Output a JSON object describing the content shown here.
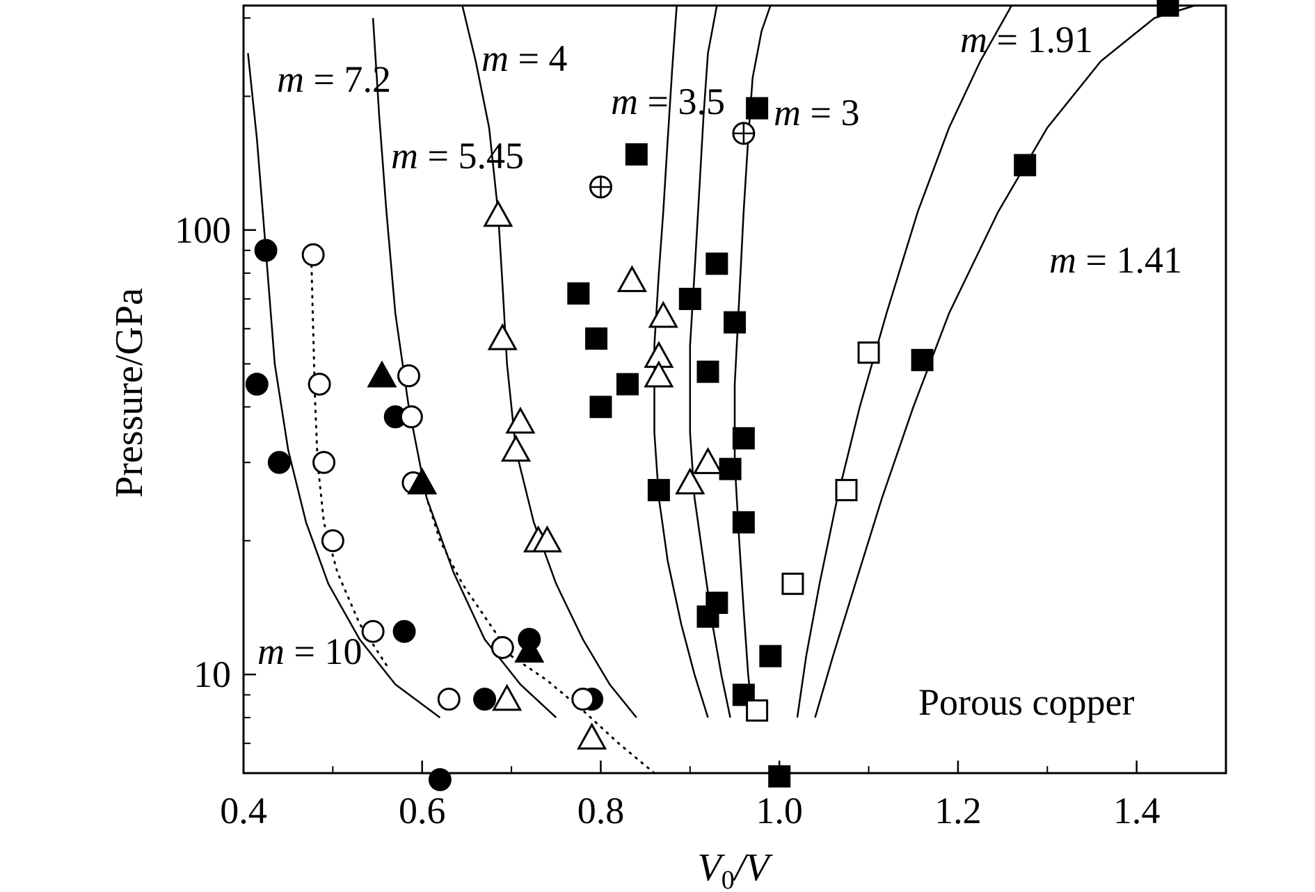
{
  "chart_data": {
    "type": "scatter",
    "title": "",
    "xlabel": "V0/V",
    "ylabel": "Pressure/GPa",
    "xlim": [
      0.4,
      1.5
    ],
    "ylim": [
      6,
      320
    ],
    "yscale": "log",
    "xticks": [
      {
        "value": 0.4,
        "label": "0.4"
      },
      {
        "value": 0.6,
        "label": "0.6"
      },
      {
        "value": 0.8,
        "label": "0.8"
      },
      {
        "value": 1.0,
        "label": "1.0"
      },
      {
        "value": 1.2,
        "label": "1.2"
      },
      {
        "value": 1.4,
        "label": "1.4"
      }
    ],
    "yticks": [
      {
        "value": 10,
        "label": "10"
      },
      {
        "value": 100,
        "label": "100"
      }
    ],
    "annotation": "Porous copper",
    "curves": [
      {
        "name": "m = 10",
        "prefix": "m",
        "value": "= 10",
        "style": "solid",
        "points": [
          [
            0.62,
            8
          ],
          [
            0.57,
            9.5
          ],
          [
            0.53,
            12
          ],
          [
            0.495,
            16
          ],
          [
            0.47,
            22
          ],
          [
            0.45,
            32
          ],
          [
            0.435,
            50
          ],
          [
            0.425,
            90
          ],
          [
            0.415,
            160
          ],
          [
            0.405,
            250
          ]
        ]
      },
      {
        "name": "m = 10 (dotted)",
        "style": "dotted",
        "points": [
          [
            0.56,
            10.5
          ],
          [
            0.53,
            13
          ],
          [
            0.505,
            17
          ],
          [
            0.49,
            22
          ],
          [
            0.483,
            30
          ],
          [
            0.48,
            42
          ],
          [
            0.478,
            60
          ],
          [
            0.476,
            85
          ]
        ]
      },
      {
        "name": "m = 7.2",
        "prefix": "m",
        "value": "= 7.2",
        "style": "solid",
        "points": [
          [
            0.75,
            8
          ],
          [
            0.71,
            9.5
          ],
          [
            0.67,
            12
          ],
          [
            0.635,
            17
          ],
          [
            0.605,
            25
          ],
          [
            0.585,
            40
          ],
          [
            0.57,
            65
          ],
          [
            0.56,
            110
          ],
          [
            0.552,
            180
          ],
          [
            0.545,
            300
          ]
        ]
      },
      {
        "name": "m = 7.2 (dotted)",
        "style": "dotted",
        "points": [
          [
            0.86,
            6
          ],
          [
            0.82,
            7
          ],
          [
            0.78,
            8.3
          ],
          [
            0.74,
            9.7
          ],
          [
            0.7,
            11
          ],
          [
            0.67,
            13.5
          ],
          [
            0.645,
            16
          ],
          [
            0.62,
            20
          ],
          [
            0.605,
            25
          ]
        ]
      },
      {
        "name": "m = 5.45",
        "prefix": "m",
        "value": "= 5.45",
        "style": "solid",
        "points": [
          [
            0.84,
            8
          ],
          [
            0.81,
            9.5
          ],
          [
            0.78,
            12
          ],
          [
            0.75,
            16
          ],
          [
            0.725,
            22
          ],
          [
            0.705,
            32
          ],
          [
            0.695,
            50
          ],
          [
            0.69,
            75
          ],
          [
            0.685,
            110
          ],
          [
            0.675,
            170
          ],
          [
            0.66,
            240
          ],
          [
            0.645,
            320
          ]
        ]
      },
      {
        "name": "m = 4",
        "prefix": "m",
        "value": "= 4",
        "style": "solid",
        "points": [
          [
            0.92,
            8
          ],
          [
            0.905,
            10
          ],
          [
            0.89,
            13
          ],
          [
            0.875,
            18
          ],
          [
            0.865,
            25
          ],
          [
            0.86,
            35
          ],
          [
            0.86,
            55
          ],
          [
            0.865,
            80
          ],
          [
            0.87,
            110
          ],
          [
            0.875,
            160
          ],
          [
            0.88,
            230
          ],
          [
            0.885,
            320
          ]
        ]
      },
      {
        "name": "m = 3.5",
        "prefix": "m",
        "value": "= 3.5",
        "style": "solid",
        "points": [
          [
            0.945,
            8
          ],
          [
            0.935,
            10
          ],
          [
            0.925,
            13
          ],
          [
            0.915,
            18
          ],
          [
            0.905,
            25
          ],
          [
            0.9,
            35
          ],
          [
            0.9,
            55
          ],
          [
            0.905,
            80
          ],
          [
            0.91,
            120
          ],
          [
            0.915,
            180
          ],
          [
            0.92,
            250
          ],
          [
            0.93,
            320
          ]
        ]
      },
      {
        "name": "m = 3",
        "prefix": "m",
        "value": "= 3",
        "style": "solid",
        "points": [
          [
            0.97,
            8
          ],
          [
            0.965,
            10
          ],
          [
            0.96,
            14
          ],
          [
            0.955,
            20
          ],
          [
            0.95,
            30
          ],
          [
            0.95,
            45
          ],
          [
            0.955,
            70
          ],
          [
            0.96,
            110
          ],
          [
            0.965,
            160
          ],
          [
            0.97,
            220
          ],
          [
            0.98,
            280
          ],
          [
            0.99,
            320
          ]
        ]
      },
      {
        "name": "m = 1.91",
        "prefix": "m",
        "value": "= 1.91",
        "style": "solid",
        "points": [
          [
            1.02,
            8
          ],
          [
            1.03,
            11
          ],
          [
            1.045,
            16
          ],
          [
            1.065,
            25
          ],
          [
            1.09,
            40
          ],
          [
            1.12,
            65
          ],
          [
            1.155,
            110
          ],
          [
            1.19,
            170
          ],
          [
            1.225,
            240
          ],
          [
            1.26,
            320
          ]
        ]
      },
      {
        "name": "m = 1.41",
        "prefix": "m",
        "value": "= 1.41",
        "style": "solid",
        "points": [
          [
            1.04,
            8
          ],
          [
            1.06,
            11
          ],
          [
            1.085,
            16
          ],
          [
            1.115,
            25
          ],
          [
            1.15,
            40
          ],
          [
            1.19,
            65
          ],
          [
            1.245,
            110
          ],
          [
            1.3,
            170
          ],
          [
            1.36,
            240
          ],
          [
            1.42,
            300
          ],
          [
            1.465,
            320
          ]
        ]
      }
    ],
    "series": [
      {
        "marker": "filled-circle",
        "points": [
          [
            0.425,
            90
          ],
          [
            0.415,
            45
          ],
          [
            0.44,
            30
          ],
          [
            0.57,
            38
          ],
          [
            0.58,
            12.5
          ],
          [
            0.72,
            12
          ],
          [
            0.67,
            8.8
          ],
          [
            0.79,
            8.8
          ],
          [
            0.62,
            5.8
          ]
        ]
      },
      {
        "marker": "open-circle",
        "points": [
          [
            0.478,
            88
          ],
          [
            0.485,
            45
          ],
          [
            0.49,
            30
          ],
          [
            0.5,
            20
          ],
          [
            0.545,
            12.5
          ],
          [
            0.63,
            8.8
          ],
          [
            0.585,
            47
          ],
          [
            0.588,
            38
          ],
          [
            0.59,
            27
          ],
          [
            0.69,
            11.5
          ],
          [
            0.78,
            8.8
          ]
        ]
      },
      {
        "marker": "filled-triangle",
        "points": [
          [
            0.555,
            47
          ],
          [
            0.6,
            27
          ],
          [
            0.72,
            11.3
          ]
        ]
      },
      {
        "marker": "open-triangle",
        "points": [
          [
            0.685,
            108
          ],
          [
            0.835,
            77
          ],
          [
            0.69,
            57
          ],
          [
            0.71,
            37
          ],
          [
            0.705,
            32
          ],
          [
            0.73,
            20
          ],
          [
            0.74,
            20
          ],
          [
            0.695,
            8.8
          ],
          [
            0.79,
            7.2
          ],
          [
            0.87,
            64
          ],
          [
            0.865,
            52
          ],
          [
            0.865,
            47
          ],
          [
            0.92,
            30
          ],
          [
            0.9,
            27
          ]
        ]
      },
      {
        "marker": "filled-square",
        "points": [
          [
            1.435,
            320
          ],
          [
            0.975,
            188
          ],
          [
            0.84,
            148
          ],
          [
            1.275,
            140
          ],
          [
            0.93,
            84
          ],
          [
            0.775,
            72
          ],
          [
            0.9,
            70
          ],
          [
            0.795,
            57
          ],
          [
            0.95,
            62
          ],
          [
            0.92,
            48
          ],
          [
            0.83,
            45
          ],
          [
            0.8,
            40
          ],
          [
            0.96,
            34
          ],
          [
            0.945,
            29
          ],
          [
            0.865,
            26
          ],
          [
            0.96,
            22
          ],
          [
            0.93,
            14.5
          ],
          [
            0.92,
            13.5
          ],
          [
            0.99,
            11
          ],
          [
            0.96,
            9
          ],
          [
            1.0,
            5.9
          ],
          [
            1.16,
            51
          ]
        ]
      },
      {
        "marker": "open-square",
        "points": [
          [
            1.1,
            53
          ],
          [
            1.075,
            26
          ],
          [
            1.015,
            16
          ],
          [
            0.975,
            8.3
          ]
        ]
      },
      {
        "marker": "crossed-circle",
        "points": [
          [
            0.8,
            125
          ],
          [
            0.96,
            165
          ]
        ]
      }
    ]
  }
}
